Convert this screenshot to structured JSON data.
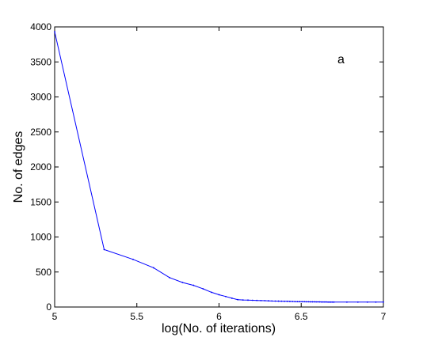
{
  "colors": {
    "series_line": "#0000ff",
    "axes": "#000000",
    "background": "#ffffff"
  },
  "chart_data": {
    "type": "line",
    "title": "",
    "xlabel": "log(No. of iterations)",
    "ylabel": "No. of edges",
    "annotation": "a",
    "xlim": [
      5,
      7
    ],
    "ylim": [
      0,
      4000
    ],
    "xticks": [
      5,
      5.5,
      6,
      6.5,
      7
    ],
    "xtick_labels": [
      "5",
      "5.5",
      "6",
      "6.5",
      "7"
    ],
    "yticks": [
      0,
      500,
      1000,
      1500,
      2000,
      2500,
      3000,
      3500,
      4000
    ],
    "ytick_labels": [
      "0",
      "500",
      "1000",
      "1500",
      "2000",
      "2500",
      "3000",
      "3500",
      "4000"
    ],
    "grid": false,
    "legend": false,
    "series": [
      {
        "x": [
          5.0,
          5.301,
          5.477,
          5.602,
          5.699,
          5.778,
          5.845,
          5.903,
          5.954,
          6.0,
          6.041,
          6.079,
          6.114,
          6.146,
          6.176,
          6.204,
          6.23,
          6.255,
          6.279,
          6.301,
          6.322,
          6.342,
          6.362,
          6.38,
          6.398,
          6.415,
          6.431,
          6.447,
          6.462,
          6.477,
          6.491,
          6.505,
          6.519,
          6.531,
          6.544,
          6.556,
          6.568,
          6.58,
          6.591,
          6.602,
          6.613,
          6.623,
          6.633,
          6.643,
          6.653,
          6.663,
          6.672,
          6.681,
          6.69,
          6.699,
          6.778,
          6.845,
          6.903,
          6.954,
          7.0
        ],
        "values": [
          3930,
          820,
          680,
          560,
          420,
          350,
          310,
          260,
          210,
          175,
          150,
          125,
          105,
          100,
          98,
          96,
          94,
          92,
          90,
          88,
          86,
          85,
          84,
          83,
          82,
          81,
          80,
          79,
          78,
          77,
          77,
          76,
          76,
          75,
          75,
          74,
          74,
          74,
          73,
          73,
          73,
          72,
          72,
          72,
          72,
          71,
          71,
          71,
          71,
          70,
          70,
          70,
          70,
          70,
          70
        ]
      }
    ]
  }
}
